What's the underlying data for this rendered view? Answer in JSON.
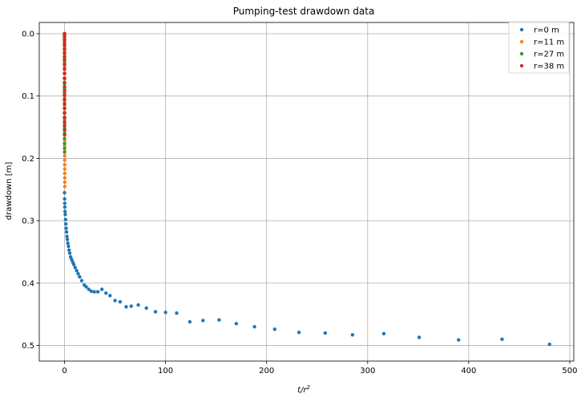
{
  "chart_data": {
    "type": "scatter",
    "title": "Pumping-test drawdown data",
    "xlabel": "t/r²",
    "xlabel_base": "t/r",
    "xlabel_sup": "2",
    "ylabel": "drawdown [m]",
    "xlim": [
      -25,
      504
    ],
    "ylim": [
      0.525,
      -0.018
    ],
    "y_inverted": true,
    "xticks": [
      0,
      100,
      200,
      300,
      400,
      500
    ],
    "yticks": [
      0.0,
      0.1,
      0.2,
      0.3,
      0.4,
      0.5
    ],
    "ytick_labels": [
      "0.0",
      "0.1",
      "0.2",
      "0.3",
      "0.4",
      "0.5"
    ],
    "grid": true,
    "legend_position": "top-right",
    "series": [
      {
        "name": "r=0 m",
        "color": "#1f77b4",
        "x": [
          0,
          0.1,
          0.2,
          0.3,
          0.5,
          0.7,
          1.0,
          1.3,
          1.6,
          2.0,
          2.4,
          2.8,
          3.3,
          3.9,
          4.5,
          5.2,
          6.0,
          7.0,
          8.0,
          9.2,
          10.5,
          12,
          13.5,
          15,
          17,
          19.5,
          21.5,
          24,
          26.5,
          29.5,
          33,
          37,
          41,
          45,
          50,
          55,
          61,
          66,
          73,
          81,
          90,
          100,
          111,
          124,
          137,
          153,
          170,
          188,
          208,
          232,
          258,
          285,
          316,
          351,
          390,
          433,
          480
        ],
        "y": [
          0.255,
          0.265,
          0.272,
          0.278,
          0.285,
          0.29,
          0.298,
          0.305,
          0.312,
          0.318,
          0.325,
          0.33,
          0.336,
          0.341,
          0.347,
          0.352,
          0.358,
          0.362,
          0.366,
          0.37,
          0.375,
          0.38,
          0.385,
          0.39,
          0.396,
          0.403,
          0.406,
          0.41,
          0.413,
          0.414,
          0.414,
          0.41,
          0.416,
          0.42,
          0.428,
          0.43,
          0.438,
          0.437,
          0.435,
          0.44,
          0.446,
          0.447,
          0.448,
          0.462,
          0.46,
          0.459,
          0.465,
          0.47,
          0.474,
          0.479,
          0.48,
          0.483,
          0.481,
          0.487,
          0.491,
          0.49,
          0.498
        ]
      },
      {
        "name": "r=11 m",
        "color": "#ff7f0e",
        "x": [
          0,
          0.002,
          0.004,
          0.006,
          0.008,
          0.01,
          0.013,
          0.016,
          0.02,
          0.025,
          0.03,
          0.036,
          0.043,
          0.05,
          0.06,
          0.07,
          0.08,
          0.09,
          0.1,
          0.11,
          0.12,
          0.13,
          0.14,
          0.15,
          0.16,
          0.17,
          0.18,
          0.19,
          0.2,
          0.21,
          0.22
        ],
        "y": [
          0.0,
          0.005,
          0.012,
          0.02,
          0.028,
          0.036,
          0.045,
          0.054,
          0.063,
          0.072,
          0.081,
          0.09,
          0.099,
          0.108,
          0.117,
          0.126,
          0.135,
          0.144,
          0.153,
          0.162,
          0.171,
          0.18,
          0.189,
          0.196,
          0.203,
          0.21,
          0.217,
          0.224,
          0.231,
          0.238,
          0.245
        ]
      },
      {
        "name": "r=27 m",
        "color": "#2ca02c",
        "x": [
          0,
          0.001,
          0.002,
          0.003,
          0.004,
          0.005,
          0.006,
          0.007,
          0.008,
          0.009,
          0.01,
          0.012,
          0.014,
          0.016,
          0.018,
          0.02,
          0.022,
          0.024,
          0.026,
          0.028,
          0.03,
          0.032,
          0.034,
          0.036,
          0.038,
          0.04
        ],
        "y": [
          0.0,
          0.004,
          0.01,
          0.017,
          0.024,
          0.032,
          0.04,
          0.048,
          0.056,
          0.064,
          0.072,
          0.08,
          0.088,
          0.096,
          0.104,
          0.112,
          0.12,
          0.128,
          0.136,
          0.144,
          0.152,
          0.16,
          0.168,
          0.176,
          0.184,
          0.19
        ]
      },
      {
        "name": "r=38 m",
        "color": "#d62728",
        "x": [
          0,
          0.0005,
          0.001,
          0.0015,
          0.002,
          0.0025,
          0.003,
          0.0035,
          0.004,
          0.0045,
          0.005,
          0.006,
          0.007,
          0.008,
          0.009,
          0.01,
          0.011,
          0.012,
          0.013,
          0.014,
          0.015,
          0.016,
          0.017,
          0.018,
          0.019,
          0.02,
          0.021
        ],
        "y": [
          0.0,
          0.002,
          0.005,
          0.009,
          0.014,
          0.019,
          0.025,
          0.031,
          0.037,
          0.043,
          0.05,
          0.057,
          0.064,
          0.071,
          0.078,
          0.085,
          0.092,
          0.099,
          0.106,
          0.113,
          0.12,
          0.127,
          0.134,
          0.141,
          0.148,
          0.155,
          0.162
        ]
      }
    ]
  }
}
